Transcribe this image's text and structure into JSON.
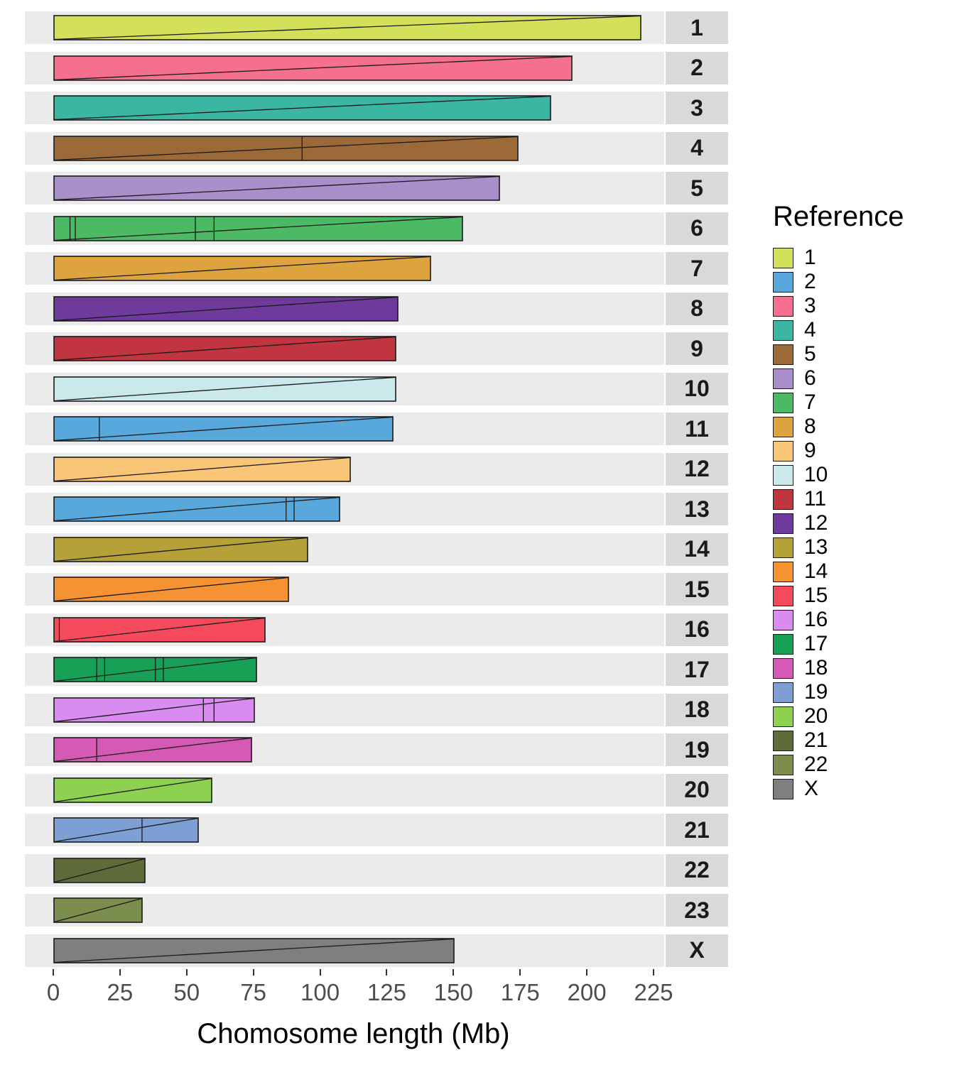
{
  "chart_data": {
    "type": "bar",
    "title": "",
    "xlabel": "Chomosome length (Mb)",
    "ylabel": "",
    "legend_title": "Reference",
    "legend_position": "right",
    "grid": false,
    "xlim": [
      0,
      240
    ],
    "x_ticks": [
      0,
      25,
      50,
      75,
      100,
      125,
      150,
      175,
      200,
      225
    ],
    "panel_background": "#EBEBEB",
    "strip_background": "#D9D9D9",
    "outline_color": "#1a1a1a",
    "facets": [
      {
        "label": "1",
        "reference": "1",
        "length_mb": 220,
        "breaks": []
      },
      {
        "label": "2",
        "reference": "3",
        "length_mb": 194,
        "breaks": []
      },
      {
        "label": "3",
        "reference": "4",
        "length_mb": 186,
        "breaks": []
      },
      {
        "label": "4",
        "reference": "5",
        "length_mb": 174,
        "breaks": [
          93
        ]
      },
      {
        "label": "5",
        "reference": "6",
        "length_mb": 167,
        "breaks": []
      },
      {
        "label": "6",
        "reference": "7",
        "length_mb": 153,
        "breaks": [
          6,
          8,
          53,
          60
        ]
      },
      {
        "label": "7",
        "reference": "8",
        "length_mb": 141,
        "breaks": []
      },
      {
        "label": "8",
        "reference": "12",
        "length_mb": 129,
        "breaks": []
      },
      {
        "label": "9",
        "reference": "11",
        "length_mb": 128,
        "breaks": []
      },
      {
        "label": "10",
        "reference": "10",
        "length_mb": 128,
        "breaks": []
      },
      {
        "label": "11",
        "reference": "2",
        "length_mb": 127,
        "breaks": [
          17
        ]
      },
      {
        "label": "12",
        "reference": "9",
        "length_mb": 111,
        "breaks": []
      },
      {
        "label": "13",
        "reference": "2",
        "length_mb": 107,
        "breaks": [
          87,
          90
        ]
      },
      {
        "label": "14",
        "reference": "13",
        "length_mb": 95,
        "breaks": []
      },
      {
        "label": "15",
        "reference": "14",
        "length_mb": 88,
        "breaks": []
      },
      {
        "label": "16",
        "reference": "15",
        "length_mb": 79,
        "breaks": [
          2
        ]
      },
      {
        "label": "17",
        "reference": "17",
        "length_mb": 76,
        "breaks": [
          16,
          19,
          38,
          41
        ]
      },
      {
        "label": "18",
        "reference": "16",
        "length_mb": 75,
        "breaks": [
          56,
          60
        ]
      },
      {
        "label": "19",
        "reference": "18",
        "length_mb": 74,
        "breaks": [
          16
        ]
      },
      {
        "label": "20",
        "reference": "20",
        "length_mb": 59,
        "breaks": []
      },
      {
        "label": "21",
        "reference": "19",
        "length_mb": 54,
        "breaks": [
          33
        ]
      },
      {
        "label": "22",
        "reference": "21",
        "length_mb": 34,
        "breaks": []
      },
      {
        "label": "23",
        "reference": "22",
        "length_mb": 33,
        "breaks": []
      },
      {
        "label": "X",
        "reference": "X",
        "length_mb": 150,
        "breaks": []
      }
    ],
    "legend": [
      {
        "label": "1",
        "color": "#d3e05a"
      },
      {
        "label": "2",
        "color": "#58a8dc"
      },
      {
        "label": "3",
        "color": "#f4708c"
      },
      {
        "label": "4",
        "color": "#3ab6a2"
      },
      {
        "label": "5",
        "color": "#9c6a39"
      },
      {
        "label": "6",
        "color": "#a98fc9"
      },
      {
        "label": "7",
        "color": "#4cba64"
      },
      {
        "label": "8",
        "color": "#dda33f"
      },
      {
        "label": "9",
        "color": "#f9c677"
      },
      {
        "label": "10",
        "color": "#cbe8eb"
      },
      {
        "label": "11",
        "color": "#c0353f"
      },
      {
        "label": "12",
        "color": "#6e3a9b"
      },
      {
        "label": "13",
        "color": "#b4a239"
      },
      {
        "label": "14",
        "color": "#f59333"
      },
      {
        "label": "15",
        "color": "#f44a5c"
      },
      {
        "label": "16",
        "color": "#d98bf0"
      },
      {
        "label": "17",
        "color": "#18a057"
      },
      {
        "label": "18",
        "color": "#d45ab5"
      },
      {
        "label": "19",
        "color": "#7d9fd3"
      },
      {
        "label": "20",
        "color": "#8ed04f"
      },
      {
        "label": "21",
        "color": "#5e6b3a"
      },
      {
        "label": "22",
        "color": "#7b8e4e"
      },
      {
        "label": "X",
        "color": "#7f7f7f"
      }
    ]
  }
}
